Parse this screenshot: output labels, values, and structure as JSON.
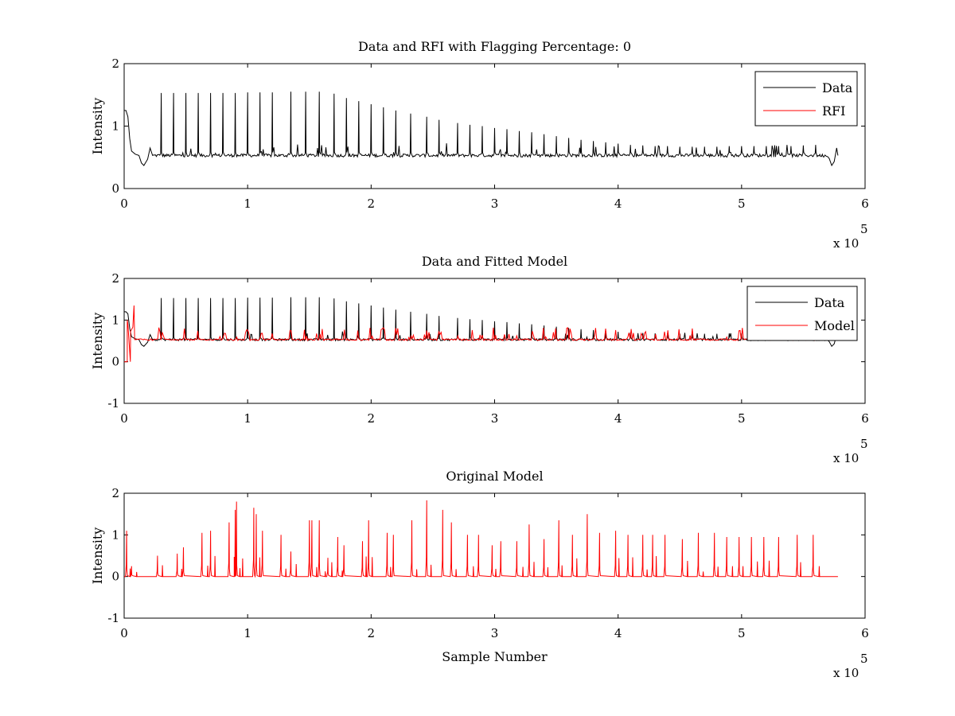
{
  "chart_data": [
    {
      "type": "line",
      "title": "Data and RFI with Flagging Percentage: 0",
      "xlabel": "",
      "ylabel": "Intensity",
      "xlim": [
        0,
        600000
      ],
      "ylim": [
        0,
        2
      ],
      "xticks": [
        0,
        1,
        2,
        3,
        4,
        5,
        6
      ],
      "yticks": [
        0,
        1,
        2
      ],
      "x_multiplier_label": "x 10",
      "x_multiplier_exponent": "5",
      "grid": false,
      "legend_position": "top-right",
      "baseline": 0.53,
      "series": [
        {
          "name": "Data",
          "color": "#000000",
          "peak_positions": [
            30000,
            40000,
            50000,
            60000,
            70000,
            80000,
            90000,
            100000,
            110000,
            120000,
            135000,
            147000,
            158000,
            170000,
            180000,
            190000,
            200000,
            210000,
            220000,
            232000,
            245000,
            255000,
            270000,
            280000,
            290000,
            300000,
            310000,
            320000,
            330000,
            340000,
            350000,
            360000,
            370000,
            380000,
            390000,
            400000,
            410000,
            420000,
            430000,
            440000,
            450000,
            460000,
            470000,
            480000,
            490000,
            500000,
            510000,
            520000,
            530000,
            540000,
            550000,
            560000
          ],
          "peak_values": [
            1.53,
            1.53,
            1.53,
            1.53,
            1.53,
            1.53,
            1.53,
            1.54,
            1.54,
            1.54,
            1.55,
            1.55,
            1.55,
            1.52,
            1.45,
            1.4,
            1.35,
            1.3,
            1.25,
            1.2,
            1.15,
            1.1,
            1.05,
            1.02,
            1.0,
            0.97,
            0.95,
            0.92,
            0.9,
            0.87,
            0.84,
            0.81,
            0.78,
            0.76,
            0.74,
            0.72,
            0.7,
            0.69,
            0.68,
            0.68,
            0.67,
            0.67,
            0.67,
            0.67,
            0.68,
            0.68,
            0.68,
            0.68,
            0.68,
            0.68,
            0.69,
            0.7
          ]
        },
        {
          "name": "RFI",
          "color": "#ff0000",
          "peak_positions": [],
          "peak_values": []
        }
      ]
    },
    {
      "type": "line",
      "title": "Data and Fitted Model",
      "xlabel": "",
      "ylabel": "Intensity",
      "xlim": [
        0,
        600000
      ],
      "ylim": [
        -1,
        2
      ],
      "xticks": [
        0,
        1,
        2,
        3,
        4,
        5,
        6
      ],
      "yticks": [
        -1,
        0,
        1,
        2
      ],
      "x_multiplier_label": "x 10",
      "x_multiplier_exponent": "5",
      "grid": false,
      "legend_position": "top-right",
      "series": [
        {
          "name": "Data",
          "color": "#000000"
        },
        {
          "name": "Model",
          "color": "#ff0000"
        }
      ]
    },
    {
      "type": "line",
      "title": "Original Model",
      "xlabel": "Sample Number",
      "ylabel": "Intensity",
      "xlim": [
        0,
        600000
      ],
      "ylim": [
        -1,
        2
      ],
      "xticks": [
        0,
        1,
        2,
        3,
        4,
        5,
        6
      ],
      "yticks": [
        -1,
        0,
        1,
        2
      ],
      "x_multiplier_label": "x 10",
      "x_multiplier_exponent": "5",
      "grid": false,
      "legend_position": "none",
      "series": [
        {
          "name": "",
          "color": "#ff0000",
          "peak_positions": [
            2000,
            6000,
            27000,
            43000,
            48000,
            63000,
            70000,
            85000,
            90000,
            91000,
            105000,
            107000,
            112000,
            127000,
            135000,
            150000,
            152000,
            158000,
            165000,
            173000,
            178000,
            193000,
            198000,
            213000,
            218000,
            233000,
            245000,
            258000,
            265000,
            278000,
            287000,
            298000,
            305000,
            318000,
            328000,
            340000,
            352000,
            363000,
            375000,
            385000,
            398000,
            408000,
            420000,
            428000,
            438000,
            452000,
            465000,
            478000,
            488000,
            498000,
            508000,
            518000,
            530000,
            545000,
            558000
          ],
          "peak_values": [
            1.1,
            0.25,
            0.5,
            0.55,
            0.7,
            1.05,
            1.1,
            1.3,
            1.6,
            1.8,
            1.65,
            1.5,
            1.1,
            1.0,
            0.6,
            1.35,
            1.35,
            1.35,
            0.45,
            0.95,
            0.75,
            0.85,
            1.35,
            1.05,
            1.0,
            1.35,
            1.83,
            1.6,
            1.3,
            1.0,
            1.0,
            0.75,
            0.85,
            0.85,
            1.25,
            0.9,
            1.35,
            1.0,
            1.5,
            1.05,
            1.1,
            1.0,
            1.0,
            1.0,
            1.0,
            0.9,
            1.05,
            1.05,
            0.95,
            0.95,
            0.95,
            0.95,
            0.95,
            1.0,
            1.0
          ]
        }
      ]
    }
  ]
}
